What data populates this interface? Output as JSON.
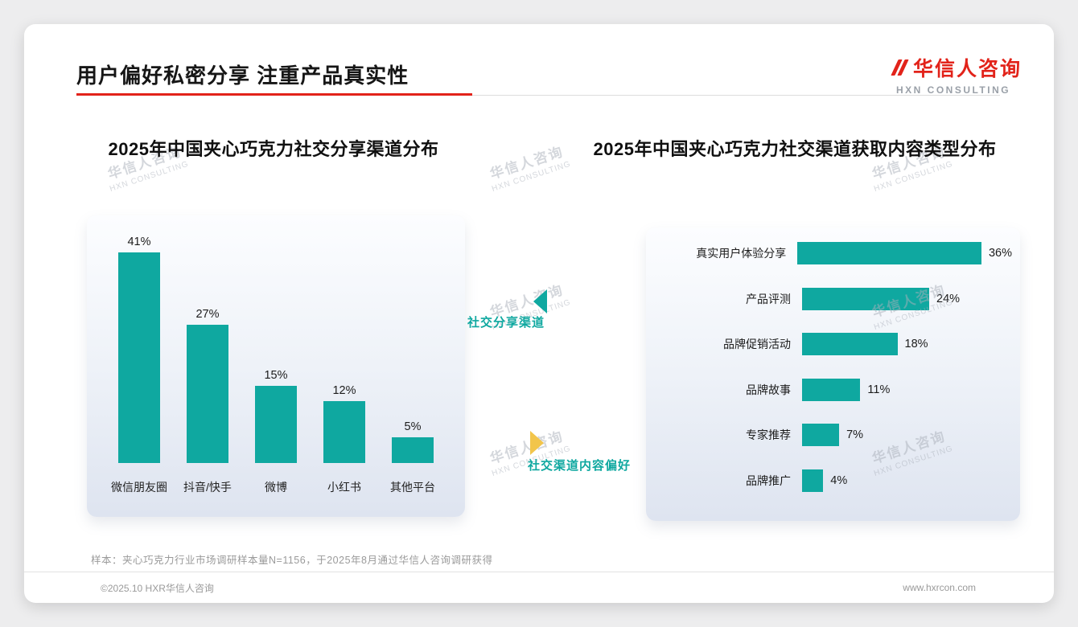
{
  "slide": {
    "title": "用户偏好私密分享 注重产品真实性",
    "sample_note": "样本：夹心巧克力行业市场调研样本量N=1156，于2025年8月通过华信人咨询调研获得",
    "copyright": "©2025.10 HXR华信人咨询",
    "website": "www.hxrcon.com"
  },
  "logo": {
    "cn": "华信人咨询",
    "en": "HXN CONSULTING"
  },
  "watermark": {
    "line1": "华信人咨询",
    "line2": "HXN CONSULTING"
  },
  "annotations": {
    "share_channel": "社交分享渠道",
    "content_preference": "社交渠道内容偏好"
  },
  "colors": {
    "bar_teal": "#0FA8A0",
    "logo_red": "#E2231A",
    "arrow_gold": "#F2C54B"
  },
  "chart_data": [
    {
      "type": "bar",
      "orientation": "vertical",
      "title": "2025年中国夹心巧克力社交分享渠道分布",
      "categories": [
        "微信朋友圈",
        "抖音/快手",
        "微博",
        "小红书",
        "其他平台"
      ],
      "values": [
        41,
        27,
        15,
        12,
        5
      ],
      "unit": "%",
      "bar_color": "#0FA8A0",
      "value_labels_shown": true,
      "axis_shown": false
    },
    {
      "type": "bar",
      "orientation": "horizontal",
      "title": "2025年中国夹心巧克力社交渠道获取内容类型分布",
      "categories": [
        "真实用户体验分享",
        "产品评测",
        "品牌促销活动",
        "品牌故事",
        "专家推荐",
        "品牌推广"
      ],
      "values": [
        36,
        24,
        18,
        11,
        7,
        4
      ],
      "unit": "%",
      "bar_color": "#0FA8A0",
      "value_labels_shown": true,
      "axis_shown": false
    }
  ]
}
